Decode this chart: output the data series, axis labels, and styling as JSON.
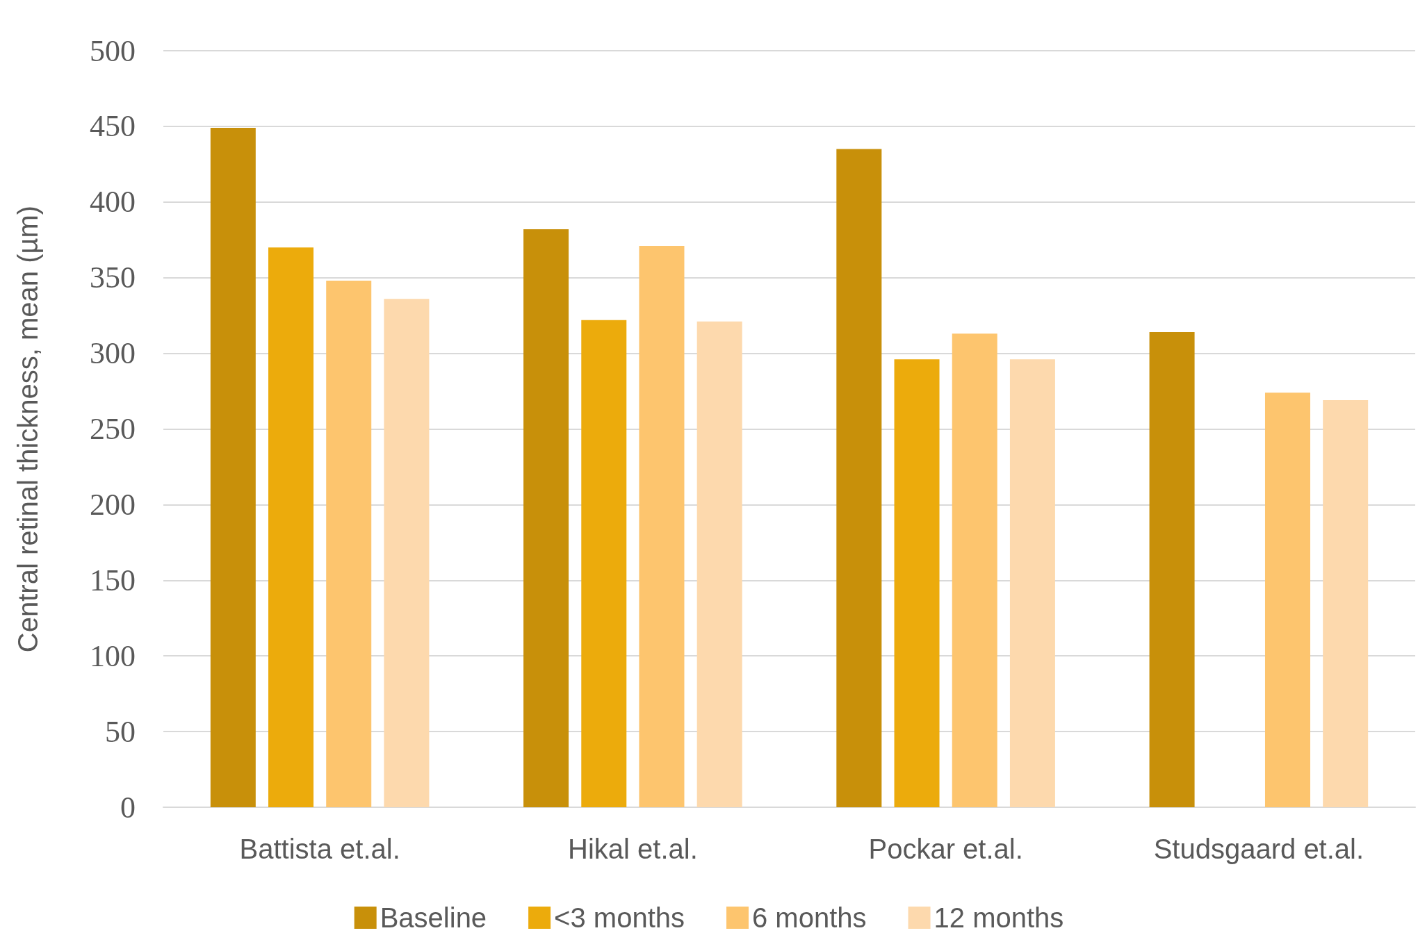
{
  "chart_data": {
    "type": "bar",
    "ylabel": "Central retinal thickness, mean (µm)",
    "categories": [
      "Battista et.al.",
      "Hikal et.al.",
      "Pockar et.al.",
      "Studsgaard et.al."
    ],
    "series": [
      {
        "name": "Baseline",
        "color": "#c8900a",
        "values": [
          449,
          382,
          435,
          314
        ]
      },
      {
        "name": "<3 months",
        "color": "#ecab0c",
        "values": [
          370,
          322,
          296,
          null
        ]
      },
      {
        "name": "6 months",
        "color": "#fdc56e",
        "values": [
          348,
          371,
          313,
          274
        ]
      },
      {
        "name": "12 months",
        "color": "#fdd9ad",
        "values": [
          336,
          321,
          296,
          269
        ]
      }
    ],
    "ylim": [
      0,
      500
    ],
    "yticks": [
      0,
      50,
      100,
      150,
      200,
      250,
      300,
      350,
      400,
      450,
      500
    ],
    "grid": "y",
    "legend": "bottom"
  }
}
